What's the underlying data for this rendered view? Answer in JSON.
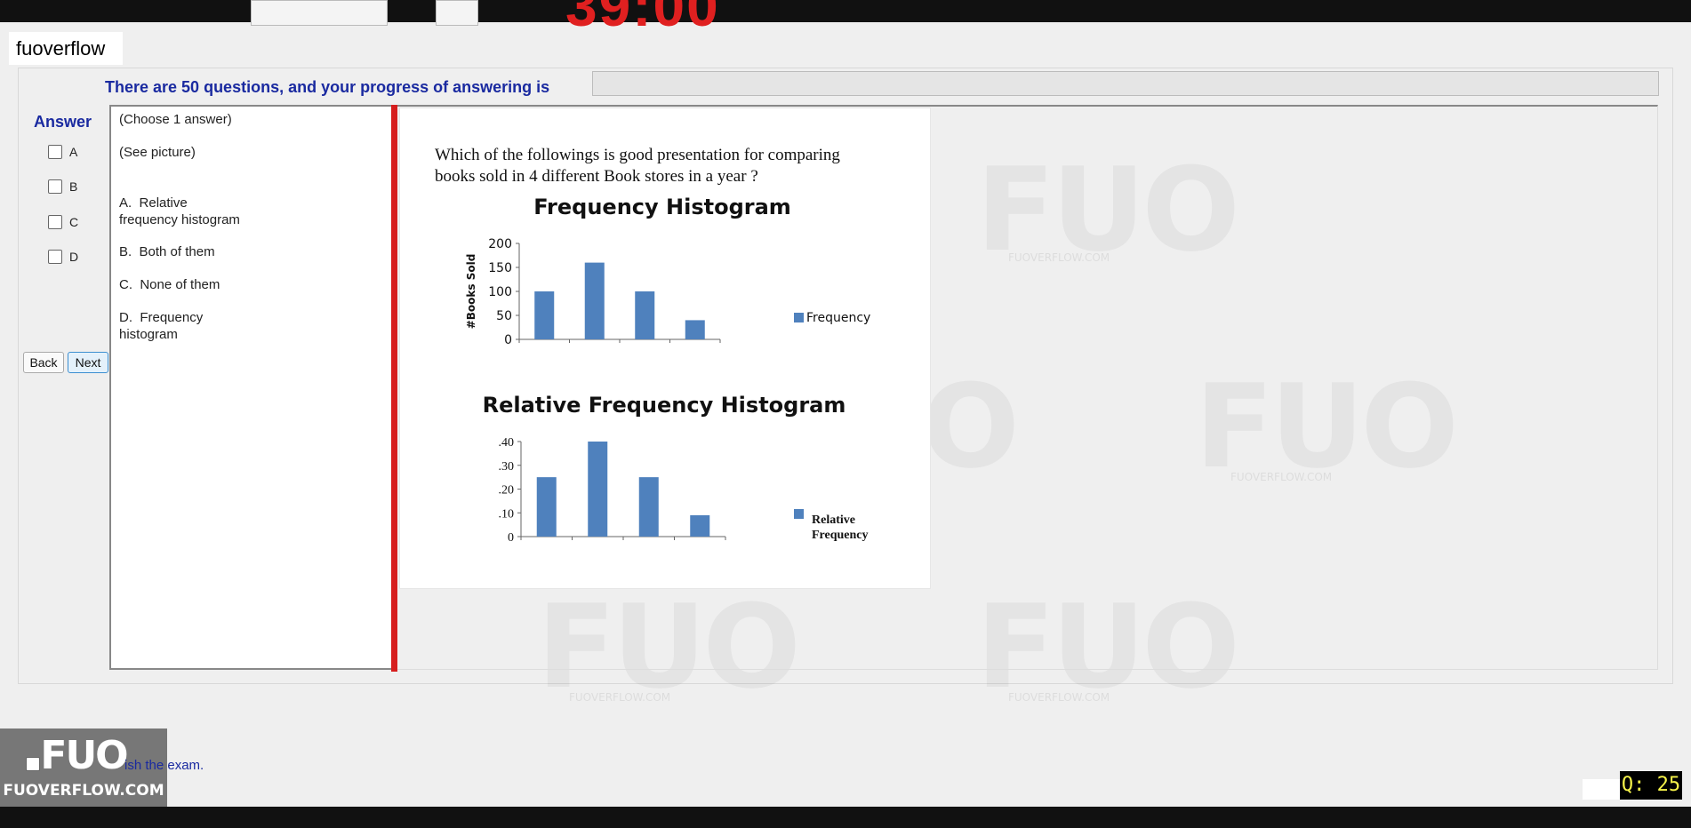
{
  "header": {
    "timer": "39:00",
    "brand": "fuoverflow"
  },
  "progress": {
    "text": "There are 50 questions, and your progress of answering is",
    "value_percent": 0
  },
  "answer_panel": {
    "title": "Answer",
    "options": [
      "A",
      "B",
      "C",
      "D"
    ],
    "back_label": "Back",
    "next_label": "Next"
  },
  "answers": {
    "instruction": "(Choose 1 answer)",
    "see_picture": "(See picture)",
    "items": [
      {
        "letter": "A.",
        "text_line1": "Relative",
        "text_line2": "frequency histogram"
      },
      {
        "letter": "B.",
        "text_line1": "Both of them",
        "text_line2": ""
      },
      {
        "letter": "C.",
        "text_line1": "None of them",
        "text_line2": ""
      },
      {
        "letter": "D.",
        "text_line1": "Frequency",
        "text_line2": "histogram"
      }
    ]
  },
  "question": {
    "line1": "Which of the followings is good presentation for comparing",
    "line2": "books sold in 4 different Book stores in a year ?"
  },
  "chart_data": [
    {
      "type": "bar",
      "title": "Frequency Histogram",
      "ylabel": "#Books Sold",
      "yticks": [
        "0",
        "50",
        "100",
        "150",
        "200"
      ],
      "ylim": [
        0,
        200
      ],
      "values": [
        100,
        160,
        100,
        40
      ],
      "series": [
        {
          "name": "Frequency",
          "values": [
            100,
            160,
            100,
            40
          ]
        }
      ],
      "color": "#4f81bd",
      "legend": "right"
    },
    {
      "type": "bar",
      "title": "Relative Frequency Histogram",
      "yticks": [
        "0",
        ".10",
        ".20",
        ".30",
        ".40"
      ],
      "ylim": [
        0,
        0.4
      ],
      "values": [
        0.25,
        0.4,
        0.25,
        0.09
      ],
      "series": [
        {
          "name": "Relative Frequency",
          "values": [
            0.25,
            0.4,
            0.25,
            0.09
          ]
        }
      ],
      "legend_line1": "Relative",
      "legend_line2": "Frequency",
      "color": "#4f81bd",
      "legend": "right"
    }
  ],
  "watermark": {
    "logo": "FUO",
    "url": "FUOVERFLOW.COM"
  },
  "footer": {
    "finish_text": "ish the exam.",
    "logo_text": "FUO",
    "logo_url": "FUOVERFLOW.COM",
    "question_counter": "Q: 25"
  }
}
